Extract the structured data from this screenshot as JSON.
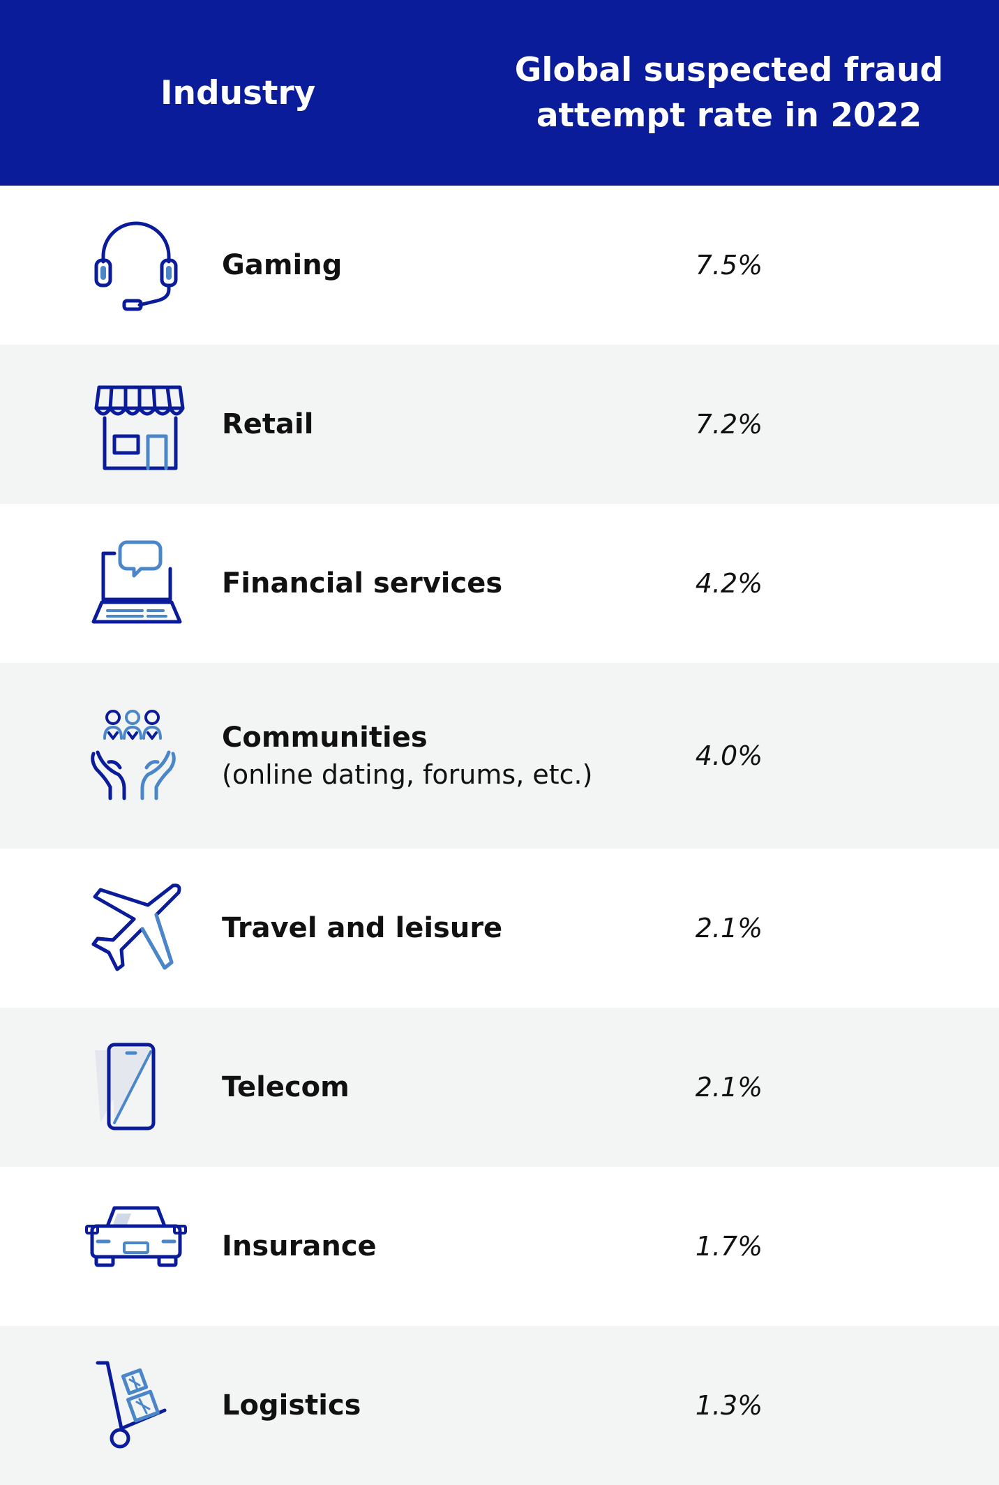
{
  "colors": {
    "header_bg": "#0a1c9a",
    "header_text": "#ffffff",
    "alt_row": "#f3f4f4",
    "icon_dark": "#0a1c9a",
    "icon_light": "#4a86c8"
  },
  "header": {
    "industry": "Industry",
    "rate": "Global suspected fraud attempt rate in 2022"
  },
  "rows": [
    {
      "name": "Gaming",
      "value": "7.5%",
      "icon": "headset-icon"
    },
    {
      "name": "Retail",
      "value": "7.2%",
      "icon": "storefront-icon"
    },
    {
      "name": "Financial services",
      "value": "4.2%",
      "icon": "laptop-chat-icon"
    },
    {
      "name": "Communities",
      "sub": "(online dating, forums, etc.)",
      "value": "4.0%",
      "icon": "community-hands-icon"
    },
    {
      "name": "Travel and leisure",
      "value": "2.1%",
      "icon": "airplane-icon"
    },
    {
      "name": "Telecom",
      "value": "2.1%",
      "icon": "smartphone-icon"
    },
    {
      "name": "Insurance",
      "value": "1.7%",
      "icon": "car-icon"
    },
    {
      "name": "Logistics",
      "value": "1.3%",
      "icon": "hand-truck-icon"
    }
  ],
  "chart_data": {
    "type": "table",
    "columns": [
      "Industry",
      "Global suspected fraud attempt rate in 2022"
    ],
    "categories": [
      "Gaming",
      "Retail",
      "Financial services",
      "Communities (online dating, forums, etc.)",
      "Travel and leisure",
      "Telecom",
      "Insurance",
      "Logistics"
    ],
    "values": [
      7.5,
      7.2,
      4.2,
      4.0,
      2.1,
      2.1,
      1.7,
      1.3
    ]
  }
}
